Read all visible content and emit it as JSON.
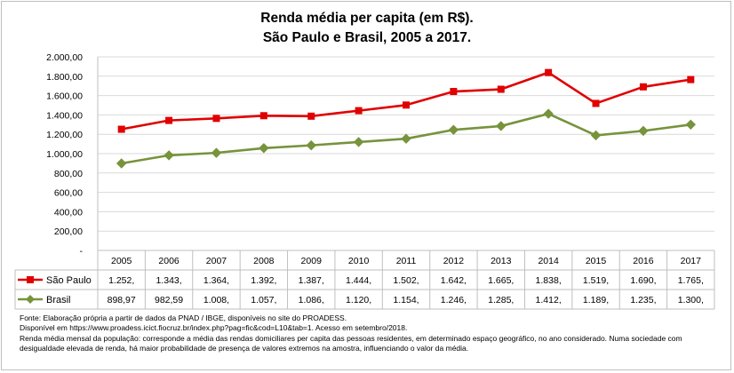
{
  "chart_data": {
    "type": "line",
    "title": "Renda média per capita (em R$).",
    "subtitle": "São Paulo e Brasil, 2005 a 2017.",
    "categories": [
      "2005",
      "2006",
      "2007",
      "2008",
      "2009",
      "2010",
      "2011",
      "2012",
      "2013",
      "2014",
      "2015",
      "2016",
      "2017"
    ],
    "ylim": [
      0,
      2000
    ],
    "yticks": [
      "-",
      "200,00",
      "400,00",
      "600,00",
      "800,00",
      "1.000,00",
      "1.200,00",
      "1.400,00",
      "1.600,00",
      "1.800,00",
      "2.000,00"
    ],
    "grid": true,
    "series": [
      {
        "name": "São Paulo",
        "color": "#e00000",
        "marker": "square",
        "values": [
          1252,
          1343,
          1364,
          1392,
          1387,
          1444,
          1502,
          1642,
          1665,
          1838,
          1519,
          1690,
          1765
        ],
        "labels": [
          "1.252,",
          "1.343,",
          "1.364,",
          "1.392,",
          "1.387,",
          "1.444,",
          "1.502,",
          "1.642,",
          "1.665,",
          "1.838,",
          "1.519,",
          "1.690,",
          "1.765,"
        ]
      },
      {
        "name": "Brasil",
        "color": "#77933c",
        "marker": "diamond",
        "values": [
          898.97,
          982.59,
          1008,
          1057,
          1086,
          1120,
          1154,
          1246,
          1285,
          1412,
          1189,
          1235,
          1300
        ],
        "labels": [
          "898,97",
          "982,59",
          "1.008,",
          "1.057,",
          "1.086,",
          "1.120,",
          "1.154,",
          "1.246,",
          "1.285,",
          "1.412,",
          "1.189,",
          "1.235,",
          "1.300,"
        ]
      }
    ]
  },
  "notes": {
    "line1": "Fonte: Elaboração própria a partir de dados da PNAD / IBGE, disponíveis no site do PROADESS.",
    "line2": "Disponível em https://www.proadess.icict.fiocruz.br/index.php?pag=fic&cod=L10&tab=1. Acesso em setembro/2018.",
    "line3": "Renda média mensal da população: corresponde a média das rendas domiciliares per capita das pessoas residentes, em determinado espaço geográfico, no ano considerado. Numa sociedade com desigualdade elevada de renda, há maior probabilidade de presença de valores extremos na amostra, influenciando o valor da média."
  }
}
